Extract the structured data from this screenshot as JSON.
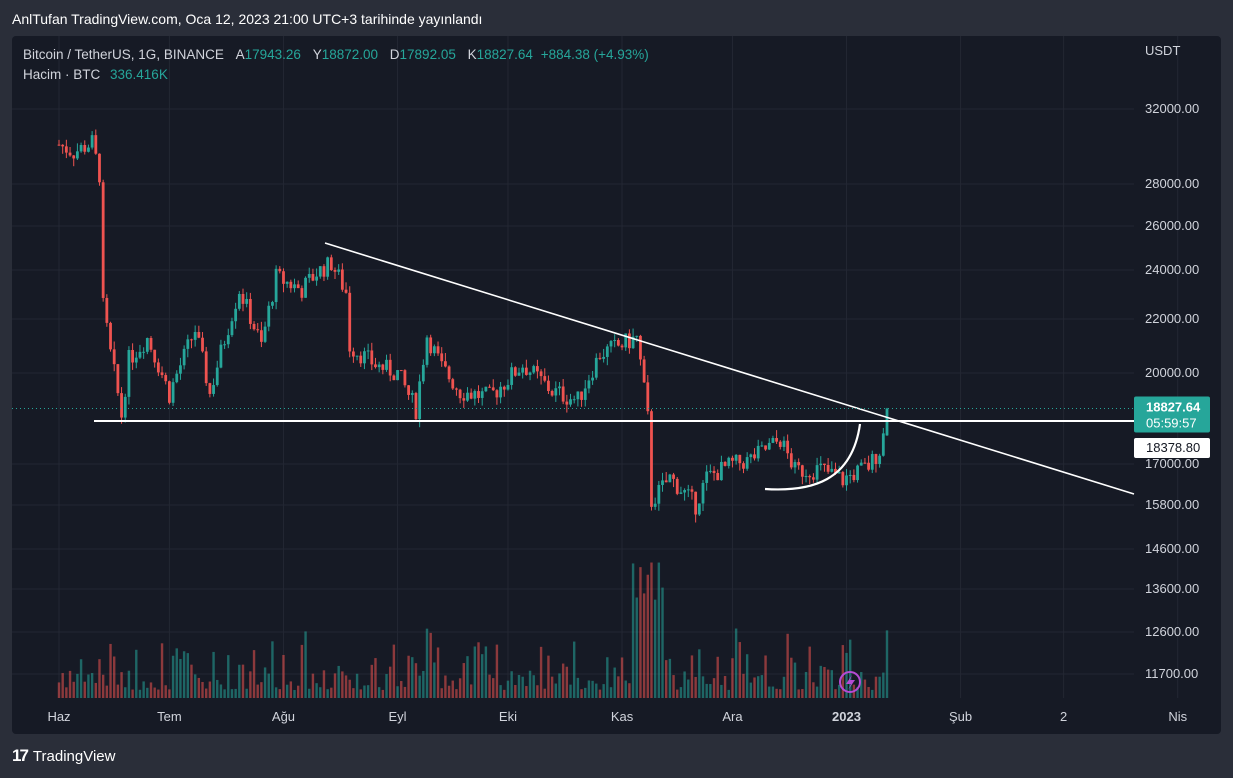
{
  "header": {
    "published_line": "AnlTufan TradingView.com, Oca 12, 2023 21:00 UTC+3 tarihinde yayınlandı"
  },
  "legend": {
    "symbol": "Bitcoin / TetherUS, 1G, BINANCE",
    "open_label": "A",
    "open": "17943.26",
    "high_label": "Y",
    "high": "18872.00",
    "low_label": "D",
    "low": "17892.05",
    "close_label": "K",
    "close": "18827.64",
    "change": "+884.38 (+4.93%)",
    "volume_label": "Hacim · BTC",
    "volume": "336.416K"
  },
  "footer": {
    "brand": "TradingView"
  },
  "colors": {
    "up": "#26a69a",
    "down": "#ef5350",
    "background": "#161a25",
    "grid": "#232733",
    "drawing": "#ffffff"
  },
  "chart_data": {
    "type": "candlestick",
    "currency": "USDT",
    "y_ticks": [
      32000,
      28000,
      26000,
      24000,
      22000,
      20000,
      17000,
      15800,
      14600,
      13600,
      12600,
      11700
    ],
    "x_ticks": [
      "Haz",
      "Tem",
      "Ağu",
      "Eyl",
      "Eki",
      "Kas",
      "Ara",
      "2023",
      "Şub",
      "2",
      "Nis"
    ],
    "last_price": "18827.64",
    "countdown": "05:59:57",
    "horizontal_line_label": "18378.80",
    "price_path": [
      [
        "2022-06-01",
        30100
      ],
      [
        "2022-06-05",
        29700
      ],
      [
        "2022-06-10",
        30200
      ],
      [
        "2022-06-12",
        28500
      ],
      [
        "2022-06-13",
        22500
      ],
      [
        "2022-06-15",
        20700
      ],
      [
        "2022-06-18",
        18600
      ],
      [
        "2022-06-20",
        20500
      ],
      [
        "2022-06-25",
        21300
      ],
      [
        "2022-07-01",
        19300
      ],
      [
        "2022-07-08",
        21600
      ],
      [
        "2022-07-12",
        19300
      ],
      [
        "2022-07-20",
        23200
      ],
      [
        "2022-07-26",
        21000
      ],
      [
        "2022-07-30",
        23700
      ],
      [
        "2022-08-06",
        23200
      ],
      [
        "2022-08-10",
        23900
      ],
      [
        "2022-08-14",
        24300
      ],
      [
        "2022-08-18",
        23100
      ],
      [
        "2022-08-19",
        21000
      ],
      [
        "2022-08-26",
        20300
      ],
      [
        "2022-09-01",
        20000
      ],
      [
        "2022-09-06",
        18800
      ],
      [
        "2022-09-09",
        21400
      ],
      [
        "2022-09-13",
        20200
      ],
      [
        "2022-09-18",
        19400
      ],
      [
        "2022-09-26",
        19200
      ],
      [
        "2022-10-05",
        20300
      ],
      [
        "2022-10-13",
        19400
      ],
      [
        "2022-10-20",
        19100
      ],
      [
        "2022-10-26",
        20700
      ],
      [
        "2022-11-05",
        21300
      ],
      [
        "2022-11-08",
        18500
      ],
      [
        "2022-11-09",
        15900
      ],
      [
        "2022-11-14",
        16600
      ],
      [
        "2022-11-21",
        15800
      ],
      [
        "2022-11-24",
        16600
      ],
      [
        "2022-12-01",
        17000
      ],
      [
        "2022-12-05",
        17100
      ],
      [
        "2022-12-14",
        17800
      ],
      [
        "2022-12-18",
        16800
      ],
      [
        "2022-12-25",
        16850
      ],
      [
        "2022-12-31",
        16540
      ],
      [
        "2023-01-07",
        16940
      ],
      [
        "2023-01-10",
        17450
      ],
      [
        "2023-01-11",
        17943
      ],
      [
        "2023-01-12",
        18828
      ]
    ],
    "volume_approx_k": [
      180,
      420,
      260,
      300,
      350,
      280,
      320,
      390,
      250,
      450,
      300,
      340,
      380,
      420,
      470,
      560,
      900,
      780,
      350,
      300,
      330,
      280,
      360,
      400,
      340
    ]
  }
}
